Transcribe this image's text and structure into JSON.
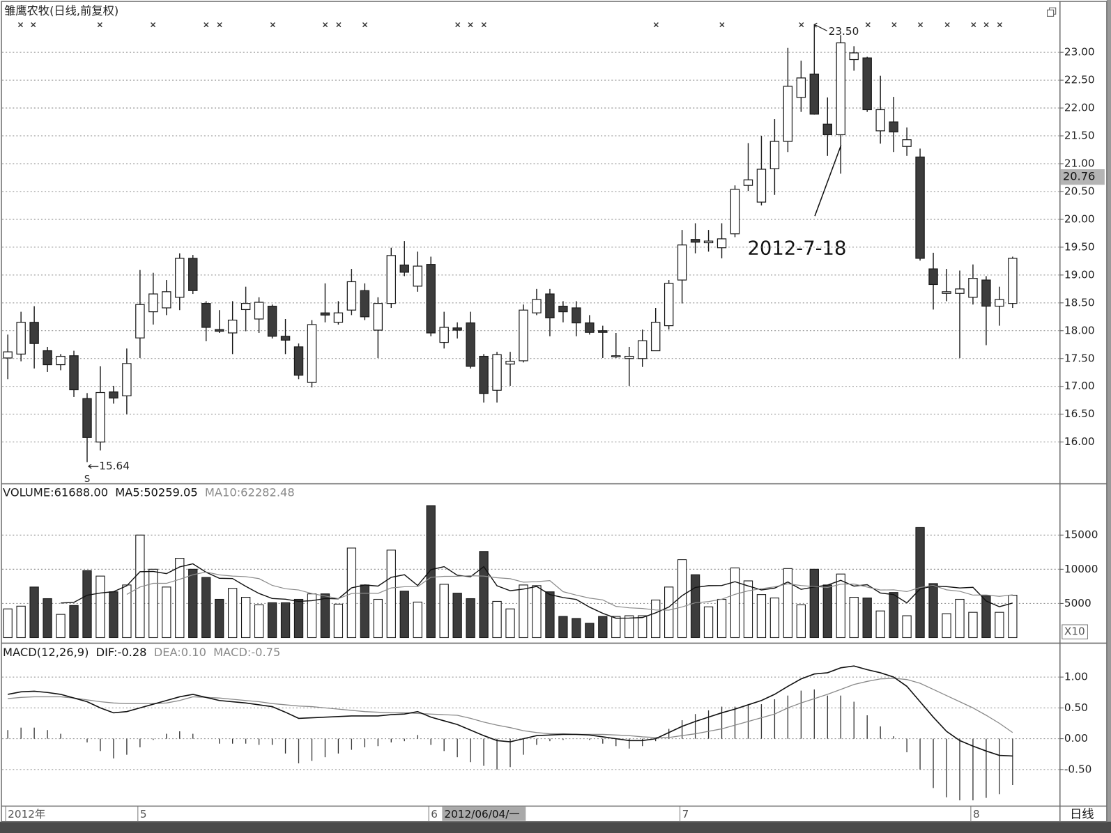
{
  "chart_data": [
    {
      "type": "candlestick",
      "title": "雏鹰农牧(日线,前复权)",
      "open": [
        17.51,
        17.58,
        18.15,
        17.64,
        17.39,
        17.55,
        16.78,
        16.0,
        16.9,
        16.83,
        17.87,
        18.34,
        18.41,
        18.6,
        19.3,
        18.49,
        18.02,
        17.96,
        18.38,
        18.21,
        18.44,
        17.9,
        17.71,
        17.07,
        18.32,
        18.15,
        18.37,
        18.72,
        18.01,
        18.49,
        19.18,
        18.8,
        19.19,
        17.79,
        18.05,
        18.14,
        17.54,
        16.93,
        17.4,
        17.46,
        18.32,
        18.66,
        18.44,
        18.41,
        18.14,
        18.0,
        17.53,
        17.5,
        17.5,
        17.64,
        18.09,
        18.91,
        19.64,
        19.58,
        19.49,
        19.74,
        20.61,
        20.31,
        20.91,
        21.4,
        22.19,
        22.61,
        21.71,
        21.52,
        22.87,
        22.9,
        21.59,
        21.75,
        21.31,
        21.12,
        19.11,
        18.67,
        18.67,
        18.6,
        18.91,
        18.44,
        18.49
      ],
      "high": [
        17.93,
        18.34,
        18.44,
        17.71,
        17.58,
        17.64,
        16.88,
        17.36,
        17.01,
        17.68,
        19.09,
        19.04,
        18.91,
        19.39,
        19.36,
        18.53,
        18.37,
        18.53,
        18.79,
        18.6,
        18.47,
        18.21,
        17.77,
        18.19,
        18.85,
        18.53,
        19.11,
        18.85,
        18.6,
        19.49,
        19.61,
        19.42,
        19.33,
        18.34,
        18.15,
        18.34,
        17.58,
        17.62,
        17.62,
        18.47,
        18.75,
        18.75,
        18.53,
        18.53,
        18.28,
        18.09,
        17.96,
        17.71,
        18.02,
        18.41,
        18.91,
        19.81,
        19.93,
        19.81,
        19.93,
        20.61,
        21.37,
        21.5,
        21.8,
        23.08,
        22.85,
        23.5,
        22.19,
        23.31,
        23.11,
        22.92,
        22.58,
        22.2,
        21.65,
        21.27,
        19.4,
        19.11,
        19.08,
        19.19,
        18.98,
        18.79,
        19.33
      ],
      "low": [
        17.13,
        17.45,
        17.32,
        17.26,
        17.29,
        16.81,
        15.64,
        15.85,
        16.69,
        16.5,
        17.51,
        18.11,
        18.28,
        18.37,
        18.66,
        17.81,
        17.96,
        17.58,
        17.99,
        17.96,
        17.86,
        17.58,
        17.13,
        16.98,
        18.15,
        18.11,
        18.28,
        18.19,
        17.51,
        18.41,
        18.98,
        18.7,
        17.9,
        17.68,
        17.86,
        17.32,
        16.71,
        16.71,
        17.01,
        17.43,
        18.28,
        17.9,
        18.15,
        17.9,
        17.93,
        17.51,
        17.51,
        17.01,
        17.35,
        17.64,
        18.02,
        18.49,
        19.39,
        19.42,
        19.3,
        19.68,
        20.51,
        20.25,
        20.44,
        21.21,
        21.93,
        21.88,
        21.14,
        20.82,
        22.67,
        21.93,
        21.36,
        21.21,
        21.14,
        19.26,
        18.38,
        18.53,
        17.51,
        18.47,
        17.74,
        18.09,
        18.41
      ],
      "close": [
        17.62,
        18.15,
        17.77,
        17.39,
        17.54,
        16.94,
        16.08,
        16.89,
        16.79,
        17.41,
        18.47,
        18.66,
        18.7,
        19.3,
        18.72,
        18.06,
        17.99,
        18.19,
        18.49,
        18.51,
        17.9,
        17.83,
        17.2,
        18.11,
        18.28,
        18.32,
        18.88,
        18.25,
        18.49,
        19.35,
        19.05,
        19.16,
        17.96,
        18.06,
        18.01,
        17.36,
        16.87,
        17.57,
        17.45,
        18.37,
        18.56,
        18.23,
        18.34,
        18.14,
        17.97,
        17.97,
        17.55,
        17.54,
        17.82,
        18.15,
        18.85,
        19.54,
        19.59,
        19.61,
        19.65,
        20.54,
        20.71,
        20.9,
        21.4,
        22.39,
        22.54,
        21.89,
        21.52,
        23.17,
        22.99,
        21.97,
        21.97,
        21.57,
        21.43,
        19.3,
        18.83,
        18.7,
        18.75,
        18.94,
        18.44,
        18.56,
        19.3
      ],
      "up_color": "#ffffff",
      "down_color": "#3c3c3c",
      "edge_color": "#1a1a1a",
      "ylim": [
        15.25,
        23.94
      ],
      "yticks": [
        {
          "value": 16,
          "label": "16.00"
        },
        {
          "value": 16.5,
          "label": "16.50"
        },
        {
          "value": 17,
          "label": "17.00"
        },
        {
          "value": 17.5,
          "label": "17.50"
        },
        {
          "value": 18,
          "label": "18.00"
        },
        {
          "value": 18.5,
          "label": "18.50"
        },
        {
          "value": 19,
          "label": "19.00"
        },
        {
          "value": 19.5,
          "label": "19.50"
        },
        {
          "value": 20,
          "label": "20.00"
        },
        {
          "value": 20.5,
          "label": "20.50"
        },
        {
          "value": 21,
          "label": "21.00"
        },
        {
          "value": 21.5,
          "label": "21.50"
        },
        {
          "value": 22,
          "label": "22.00"
        },
        {
          "value": 22.5,
          "label": "22.50"
        },
        {
          "value": 23,
          "label": "23.00"
        }
      ],
      "grid": true,
      "max_label": {
        "value": 23.5,
        "label": "23.50"
      },
      "min_label": {
        "value": 15.64,
        "label": "15.64"
      },
      "low_marker": "S",
      "annotation": "2012-7-18",
      "price_marker": {
        "value": 20.76,
        "label": "20.76"
      }
    },
    {
      "type": "volume",
      "series": [
        {
          "name": "VOLUME:61688.00",
          "color": "#1a1a1a",
          "values": [
            4200,
            4600,
            7400,
            5700,
            3400,
            4700,
            9800,
            9000,
            6700,
            7700,
            15000,
            10000,
            7400,
            11600,
            10000,
            8800,
            5600,
            7200,
            5900,
            4800,
            5100,
            5100,
            5600,
            6400,
            6400,
            4900,
            13100,
            7700,
            5600,
            12800,
            6800,
            5200,
            19300,
            7800,
            6500,
            5700,
            12600,
            5300,
            4200,
            7700,
            7600,
            6700,
            3100,
            2800,
            2100,
            3100,
            3100,
            3200,
            3200,
            5500,
            7400,
            11400,
            9200,
            4500,
            5600,
            10200,
            8300,
            6300,
            5800,
            10100,
            4800,
            10000,
            7700,
            9300,
            5900,
            5800,
            3900,
            6600,
            3200,
            16100,
            7900,
            3500,
            5600,
            3700,
            6100,
            3700,
            6200
          ]
        },
        {
          "name": "MA5:50259.05",
          "color": "#111111",
          "values": [
            null,
            null,
            null,
            null,
            5060,
            5160,
            6200,
            6520,
            6720,
            7580,
            9640,
            9680,
            9360,
            10340,
            10800,
            9560,
            8680,
            8640,
            7500,
            6460,
            5720,
            5620,
            5300,
            5400,
            5720,
            5680,
            7280,
            7700,
            7540,
            8820,
            9200,
            7620,
            9940,
            10380,
            9120,
            8900,
            10380,
            7580,
            6860,
            7100,
            7480,
            6300,
            5860,
            5580,
            4460,
            3560,
            2840,
            2860,
            2940,
            3620,
            4480,
            6140,
            7340,
            7600,
            7620,
            8180,
            7560,
            6980,
            7240,
            8140,
            7060,
            7400,
            7680,
            8380,
            7540,
            7740,
            6520,
            6300,
            5080,
            7120,
            7540,
            7460,
            7260,
            7360,
            5360,
            4520,
            5060
          ]
        },
        {
          "name": "MA10:62282.48",
          "color": "#8a8a8a",
          "values": [
            null,
            null,
            null,
            null,
            null,
            null,
            null,
            null,
            null,
            6320,
            7400,
            7940,
            7940,
            8530,
            9190,
            9600,
            9180,
            9000,
            8920,
            8630,
            7640,
            7150,
            6970,
            6450,
            6090,
            5700,
            6450,
            6500,
            6470,
            7270,
            7440,
            7450,
            8820,
            8960,
            8970,
            9050,
            9000,
            8760,
            8620,
            8110,
            8190,
            8340,
            6720,
            6220,
            5780,
            5520,
            4570,
            4360,
            4260,
            4040,
            4020,
            4490,
            5100,
            5270,
            5620,
            6330,
            6850,
            7160,
            7420,
            7880,
            7620,
            7480,
            7330,
            7810,
            7840,
            7400,
            6960,
            6990,
            6730,
            7330,
            7640,
            6990,
            6780,
            6220,
            6240,
            6030,
            6260
          ]
        }
      ],
      "ylim": [
        -500,
        22500
      ],
      "yticks": [
        5000,
        10000,
        15000
      ],
      "grid": true,
      "unit_label": "X10"
    },
    {
      "type": "macd",
      "title": "MACD(12,26,9)",
      "series": [
        {
          "name": "DIF:-0.28",
          "color": "#111111",
          "values": [
            0.72,
            0.76,
            0.77,
            0.75,
            0.72,
            0.66,
            0.6,
            0.5,
            0.42,
            0.44,
            0.5,
            0.56,
            0.62,
            0.68,
            0.72,
            0.67,
            0.62,
            0.6,
            0.58,
            0.55,
            0.52,
            0.43,
            0.33,
            0.34,
            0.35,
            0.36,
            0.37,
            0.37,
            0.37,
            0.39,
            0.4,
            0.44,
            0.35,
            0.29,
            0.23,
            0.14,
            0.05,
            -0.03,
            -0.05,
            0.0,
            0.05,
            0.06,
            0.07,
            0.07,
            0.06,
            0.03,
            0.0,
            -0.03,
            -0.03,
            0.0,
            0.1,
            0.2,
            0.28,
            0.35,
            0.42,
            0.48,
            0.55,
            0.62,
            0.72,
            0.85,
            0.97,
            1.05,
            1.07,
            1.15,
            1.18,
            1.12,
            1.07,
            1.0,
            0.85,
            0.6,
            0.35,
            0.12,
            -0.03,
            -0.12,
            -0.2,
            -0.27,
            -0.28
          ]
        },
        {
          "name": "DEA:0.10",
          "color": "#8a8a8a",
          "values": [
            0.65,
            0.67,
            0.68,
            0.68,
            0.68,
            0.66,
            0.63,
            0.6,
            0.58,
            0.57,
            0.57,
            0.57,
            0.58,
            0.62,
            0.68,
            0.67,
            0.66,
            0.64,
            0.62,
            0.6,
            0.57,
            0.55,
            0.53,
            0.52,
            0.5,
            0.48,
            0.46,
            0.44,
            0.43,
            0.42,
            0.42,
            0.41,
            0.4,
            0.39,
            0.38,
            0.33,
            0.27,
            0.22,
            0.18,
            0.13,
            0.1,
            0.08,
            0.08,
            0.07,
            0.07,
            0.07,
            0.06,
            0.05,
            0.03,
            0.02,
            0.02,
            0.05,
            0.08,
            0.12,
            0.16,
            0.22,
            0.28,
            0.34,
            0.4,
            0.5,
            0.58,
            0.65,
            0.72,
            0.8,
            0.88,
            0.93,
            0.97,
            0.98,
            0.96,
            0.9,
            0.8,
            0.7,
            0.6,
            0.5,
            0.38,
            0.25,
            0.1
          ]
        },
        {
          "name": "MACD:-0.75",
          "color": "#8a8a8a",
          "values": [
            0.14,
            0.18,
            0.18,
            0.14,
            0.08,
            0,
            -0.06,
            -0.2,
            -0.32,
            -0.26,
            -0.14,
            -0.02,
            0.08,
            0.12,
            0.08,
            0,
            -0.08,
            -0.08,
            -0.08,
            -0.1,
            -0.1,
            -0.24,
            -0.4,
            -0.36,
            -0.3,
            -0.24,
            -0.18,
            -0.14,
            -0.12,
            -0.06,
            -0.04,
            0.06,
            -0.1,
            -0.2,
            -0.3,
            -0.38,
            -0.44,
            -0.5,
            -0.46,
            -0.26,
            -0.1,
            -0.04,
            -0.02,
            0,
            -0.02,
            -0.08,
            -0.12,
            -0.16,
            -0.12,
            -0.04,
            0.16,
            0.3,
            0.4,
            0.46,
            0.52,
            0.52,
            0.54,
            0.56,
            0.64,
            0.7,
            0.78,
            0.8,
            0.7,
            0.7,
            0.6,
            0.38,
            0.2,
            0.04,
            -0.22,
            -0.5,
            -0.8,
            -0.95,
            -1.0,
            -1.0,
            -0.96,
            -0.9,
            -0.75
          ]
        }
      ],
      "ylim": [
        -1.07,
        1.55
      ],
      "yticks": [
        {
          "value": -0.5,
          "label": "-0.50"
        },
        {
          "value": 0,
          "label": "0.00"
        },
        {
          "value": 0.5,
          "label": "0.50"
        },
        {
          "value": 1,
          "label": "1.00"
        }
      ],
      "grid": true,
      "xticks": [
        {
          "value": 0,
          "label": "2012年"
        },
        {
          "value": 10,
          "label": "5"
        },
        {
          "value": 32,
          "label": "6"
        },
        {
          "value": 51,
          "label": "7"
        },
        {
          "value": 73,
          "label": "8"
        }
      ],
      "cursor_label": "2012/06/04/一",
      "period": "日线"
    }
  ]
}
